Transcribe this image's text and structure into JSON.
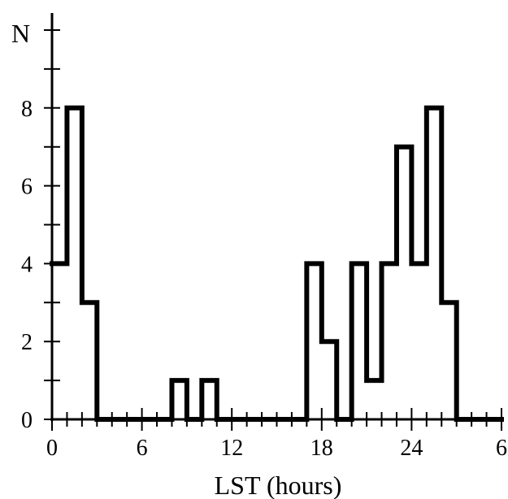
{
  "chart_data": {
    "type": "bar",
    "style": "step-histogram",
    "title": "",
    "xlabel": "LST (hours)",
    "ylabel": "N",
    "bin_width_hours": 1,
    "x": [
      0,
      1,
      2,
      3,
      4,
      5,
      6,
      7,
      8,
      9,
      10,
      11,
      12,
      13,
      14,
      15,
      16,
      17,
      18,
      19,
      20,
      21,
      22,
      23,
      24,
      25,
      26,
      27,
      28,
      29
    ],
    "values": [
      4,
      8,
      3,
      0,
      0,
      0,
      0,
      0,
      1,
      0,
      1,
      0,
      0,
      0,
      0,
      0,
      0,
      4,
      2,
      0,
      4,
      1,
      4,
      7,
      4,
      8,
      3,
      0,
      0,
      0
    ],
    "xlim": [
      0,
      30
    ],
    "ylim": [
      0,
      10
    ],
    "x_tick_labels": [
      "0",
      "6",
      "12",
      "18",
      "24",
      "6"
    ],
    "y_tick_labels": [
      "0",
      "2",
      "4",
      "6",
      "8"
    ],
    "grid": false,
    "legend": "none"
  }
}
